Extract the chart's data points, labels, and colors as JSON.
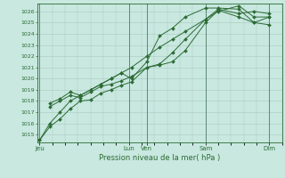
{
  "title": "",
  "xlabel": "Pression niveau de la mer( hPa )",
  "bg_color": "#c8e8e0",
  "line_color": "#2d6b35",
  "grid_color": "#a8c8c0",
  "major_grid_color": "#608878",
  "ylim": [
    1014.3,
    1026.7
  ],
  "yticks": [
    1015,
    1016,
    1017,
    1018,
    1019,
    1020,
    1021,
    1022,
    1023,
    1024,
    1025,
    1026
  ],
  "xtick_labels": [
    "Jeu",
    "Lun",
    "Ven",
    "Sam",
    "Dim"
  ],
  "xtick_positions": [
    0.0,
    3.5,
    4.2,
    6.5,
    9.0
  ],
  "xlim": [
    -0.1,
    9.5
  ],
  "series": [
    {
      "x": [
        0.0,
        0.4,
        0.8,
        1.2,
        1.6,
        2.0,
        2.4,
        2.8,
        3.2,
        3.6,
        4.2,
        4.7,
        5.2,
        5.7,
        6.5,
        7.0,
        7.8,
        8.4,
        9.0
      ],
      "y": [
        1014.5,
        1015.7,
        1016.4,
        1017.3,
        1018.0,
        1018.1,
        1018.7,
        1019.0,
        1019.4,
        1019.7,
        1021.0,
        1021.2,
        1021.5,
        1022.5,
        1025.0,
        1026.1,
        1025.5,
        1025.0,
        1025.5
      ]
    },
    {
      "x": [
        0.4,
        0.8,
        1.2,
        1.6,
        2.0,
        2.4,
        2.8,
        3.2,
        3.6,
        4.2,
        4.7,
        5.2,
        5.7,
        6.5,
        7.0,
        7.8,
        8.4,
        9.0
      ],
      "y": [
        1017.5,
        1018.0,
        1018.5,
        1018.3,
        1018.8,
        1019.3,
        1019.5,
        1019.8,
        1020.2,
        1021.0,
        1021.3,
        1022.3,
        1023.5,
        1025.3,
        1026.2,
        1025.8,
        1026.0,
        1025.8
      ]
    },
    {
      "x": [
        0.4,
        0.8,
        1.2,
        1.6,
        2.0,
        2.4,
        2.8,
        3.2,
        3.6,
        4.2,
        4.7,
        5.2,
        5.7,
        6.5,
        7.0,
        7.8,
        8.4,
        9.0
      ],
      "y": [
        1017.8,
        1018.2,
        1018.8,
        1018.5,
        1019.0,
        1019.5,
        1020.0,
        1020.5,
        1020.0,
        1021.5,
        1023.8,
        1024.5,
        1025.5,
        1026.3,
        1026.3,
        1026.2,
        1025.0,
        1024.8
      ]
    },
    {
      "x": [
        0.0,
        0.4,
        0.8,
        1.2,
        1.6,
        2.0,
        2.4,
        2.8,
        3.2,
        3.6,
        4.2,
        4.7,
        5.2,
        5.7,
        6.5,
        7.0,
        7.8,
        8.4,
        9.0
      ],
      "y": [
        1014.5,
        1016.0,
        1017.0,
        1018.0,
        1018.5,
        1019.0,
        1019.5,
        1020.0,
        1020.5,
        1021.0,
        1022.0,
        1022.8,
        1023.5,
        1024.2,
        1025.3,
        1026.0,
        1026.5,
        1025.5,
        1025.5
      ]
    }
  ]
}
